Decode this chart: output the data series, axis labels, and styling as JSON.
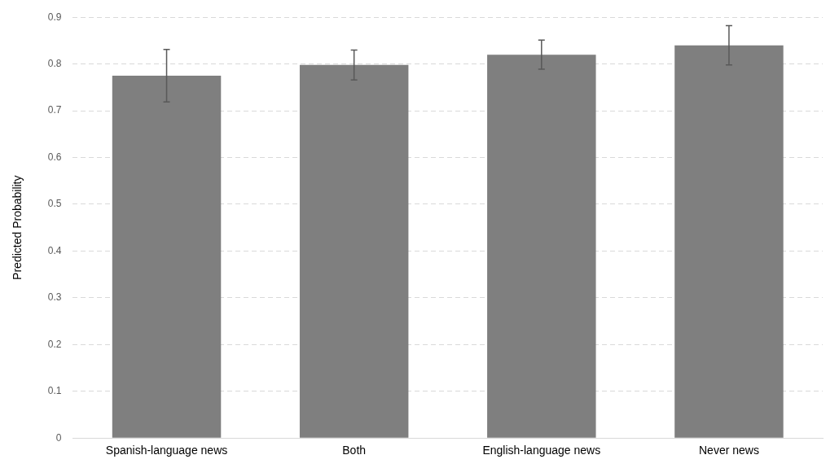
{
  "chart_data": {
    "type": "bar",
    "ylabel": "Predicted Probability",
    "categories": [
      "Spanish-language news",
      "Both",
      "English-language news",
      "Never news"
    ],
    "values": [
      0.775,
      0.798,
      0.82,
      0.84
    ],
    "errors": [
      0.056,
      0.032,
      0.031,
      0.042
    ],
    "color": "#7f7f7f",
    "ylim": [
      0,
      0.9
    ],
    "yticks": [
      0,
      0.1,
      0.2,
      0.3,
      0.4,
      0.5,
      0.6,
      0.7,
      0.8,
      0.9
    ],
    "grid": "y",
    "legend": false
  }
}
